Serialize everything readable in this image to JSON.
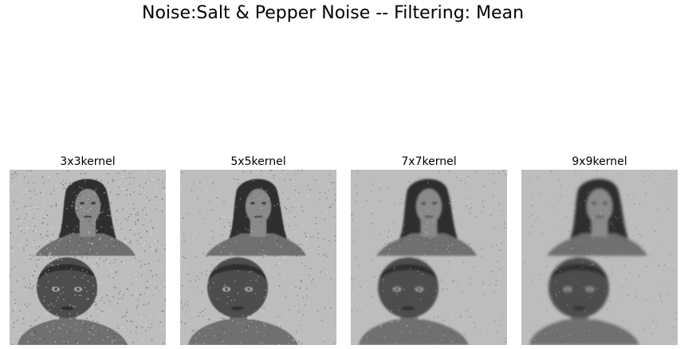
{
  "figure": {
    "title": "Noise:Salt & Pepper Noise -- Filtering: Mean"
  },
  "panels": [
    {
      "title": "3x3kernel",
      "kernel_size": 3
    },
    {
      "title": "5x5kernel",
      "kernel_size": 5
    },
    {
      "title": "7x7kernel",
      "kernel_size": 7
    },
    {
      "title": "9x9kernel",
      "kernel_size": 9
    }
  ],
  "image_content": {
    "colors": {
      "background_gray": "#bdbdbd",
      "dark": "#2e2e2e",
      "mid": "#6f6f6f",
      "skin": "#8a8a8a"
    }
  }
}
